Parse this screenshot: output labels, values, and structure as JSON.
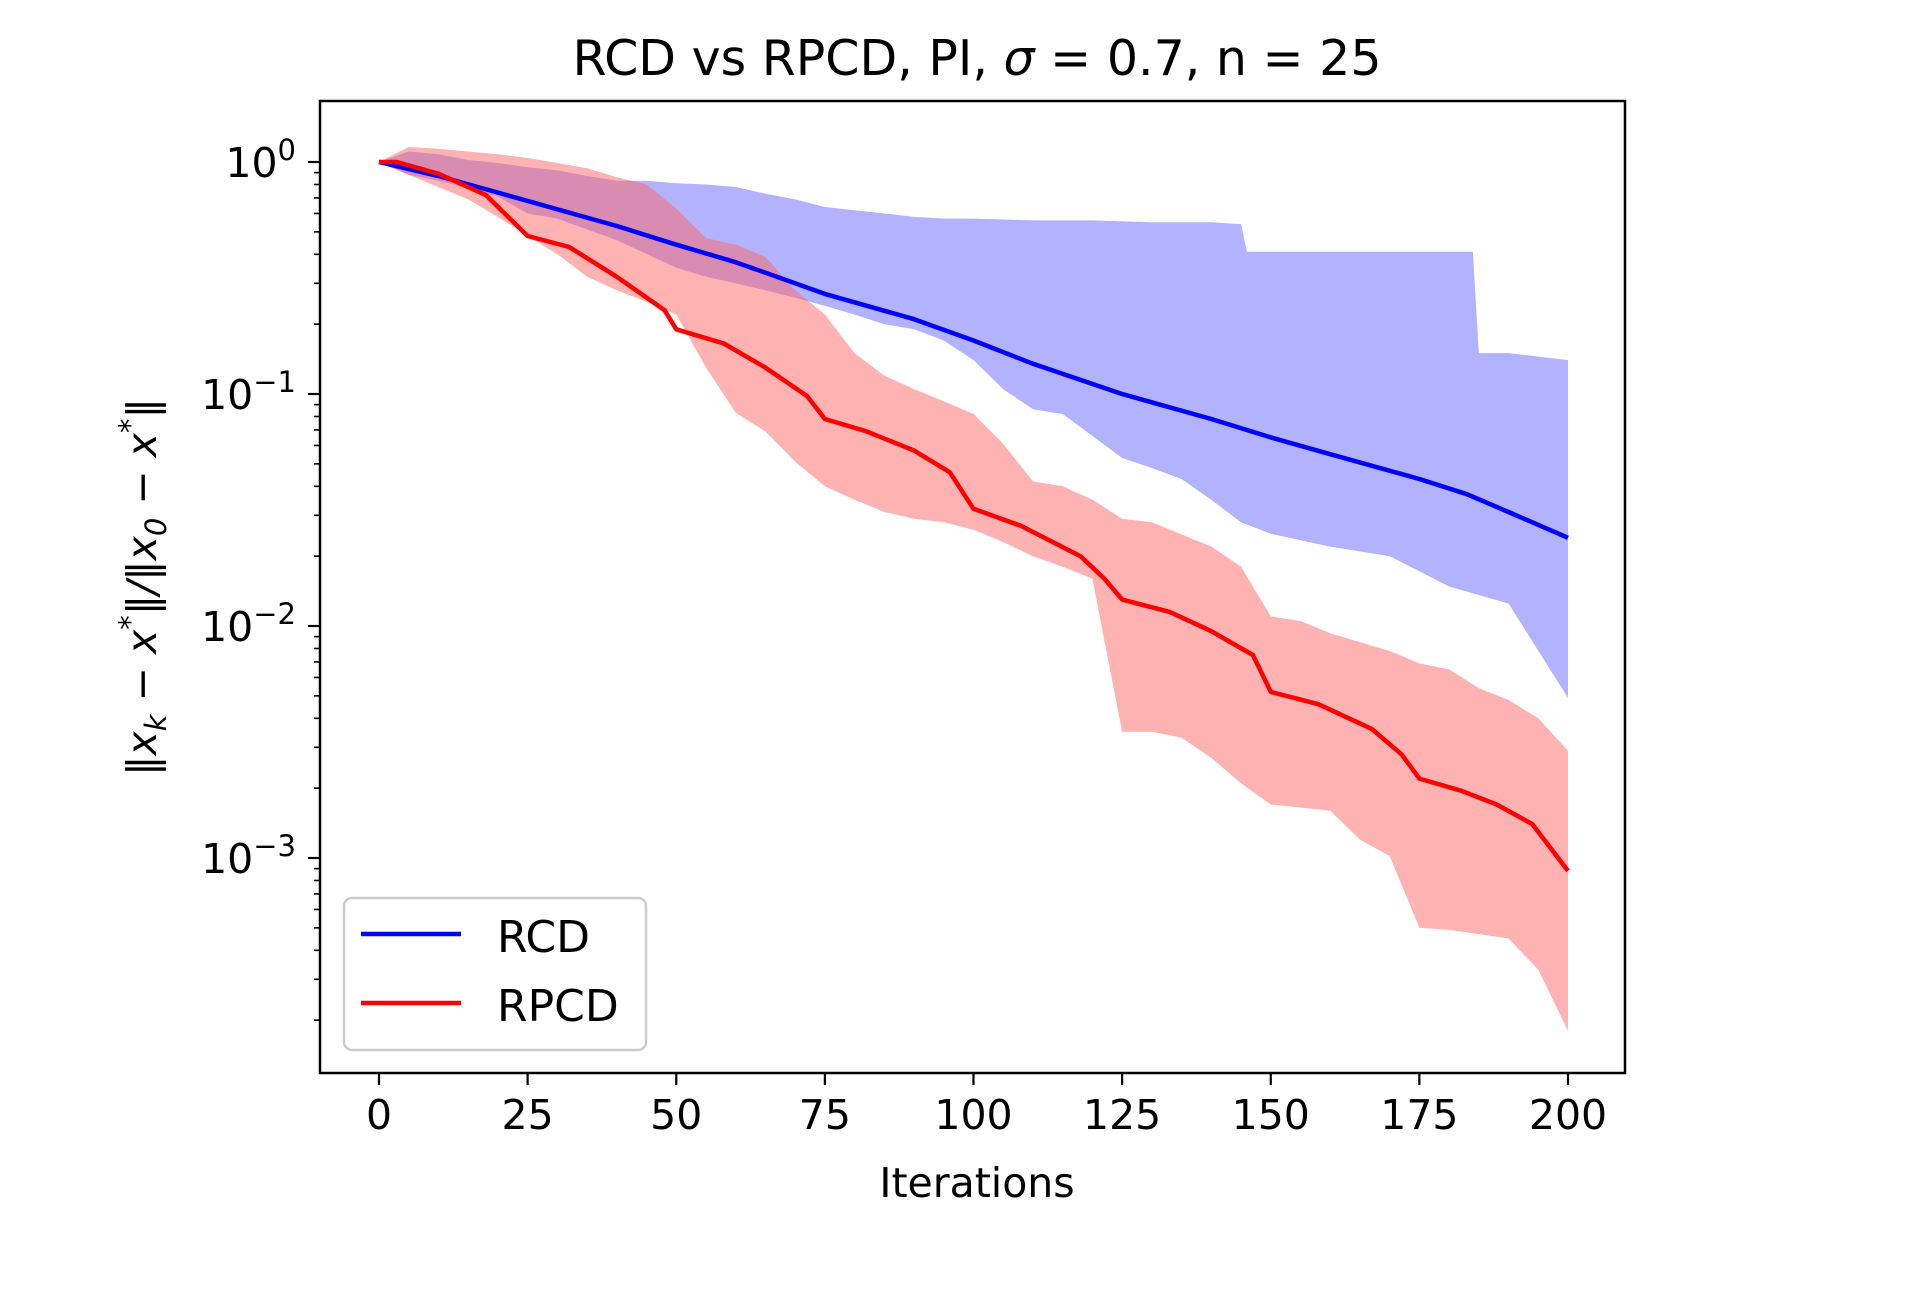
{
  "chart_data": {
    "type": "line",
    "title": "RCD vs RPCD, PI, σ = 0.7, n = 25",
    "title_parts": {
      "prefix": "RCD vs RPCD, PI, ",
      "sigma": "σ",
      "suffix": " = 0.7, n = 25"
    },
    "xlabel": "Iterations",
    "ylabel": "‖x_k − x*‖/‖x_0 − x*‖",
    "ylabel_parts": [
      "‖x",
      "k",
      " − x",
      "*",
      "‖/‖x",
      "0",
      " − x",
      "*",
      "‖"
    ],
    "xlim": [
      -10,
      210
    ],
    "ylim": [
      0.00012,
      1.86
    ],
    "yscale": "log",
    "grid": false,
    "legend_position": "lower-left",
    "xticks": [
      0,
      25,
      50,
      75,
      100,
      125,
      150,
      175,
      200
    ],
    "xtick_labels": [
      "0",
      "25",
      "50",
      "75",
      "100",
      "125",
      "150",
      "175",
      "200"
    ],
    "yticks": [
      1,
      0.1,
      0.01,
      0.001
    ],
    "ytick_labels": [
      {
        "base": "10",
        "exp": "0"
      },
      {
        "base": "10",
        "exp": "−1"
      },
      {
        "base": "10",
        "exp": "−2"
      },
      {
        "base": "10",
        "exp": "−3"
      }
    ],
    "series": [
      {
        "name": "RCD",
        "color": "#0000ff",
        "band_color": "#b0b0fc",
        "mean": {
          "x": [
            0,
            10,
            25,
            40,
            50,
            60,
            75,
            90,
            100,
            110,
            125,
            140,
            150,
            160,
            175,
            183,
            190,
            200
          ],
          "y": [
            1.0,
            0.87,
            0.68,
            0.53,
            0.44,
            0.37,
            0.27,
            0.21,
            0.17,
            0.135,
            0.1,
            0.078,
            0.065,
            0.055,
            0.043,
            0.037,
            0.031,
            0.024
          ]
        },
        "upper": {
          "x": [
            0,
            5,
            10,
            15,
            20,
            25,
            30,
            35,
            40,
            45,
            50,
            55,
            60,
            65,
            70,
            75,
            80,
            85,
            90,
            95,
            100,
            110,
            120,
            130,
            140,
            145,
            146,
            160,
            170,
            180,
            184,
            185,
            190,
            200
          ],
          "y": [
            1.0,
            1.11,
            1.08,
            1.02,
            0.99,
            0.95,
            0.92,
            0.87,
            0.83,
            0.83,
            0.81,
            0.8,
            0.78,
            0.73,
            0.69,
            0.64,
            0.62,
            0.6,
            0.58,
            0.57,
            0.57,
            0.56,
            0.56,
            0.55,
            0.55,
            0.54,
            0.41,
            0.41,
            0.41,
            0.41,
            0.41,
            0.15,
            0.15,
            0.14
          ]
        },
        "lower": {
          "x": [
            0,
            5,
            10,
            20,
            25,
            30,
            40,
            50,
            55,
            60,
            65,
            70,
            75,
            80,
            85,
            90,
            95,
            100,
            105,
            110,
            115,
            120,
            125,
            130,
            135,
            140,
            145,
            150,
            160,
            170,
            180,
            190,
            200
          ],
          "y": [
            1.0,
            0.88,
            0.83,
            0.71,
            0.6,
            0.57,
            0.46,
            0.35,
            0.32,
            0.3,
            0.28,
            0.26,
            0.24,
            0.22,
            0.2,
            0.19,
            0.17,
            0.14,
            0.105,
            0.086,
            0.082,
            0.066,
            0.053,
            0.048,
            0.043,
            0.035,
            0.028,
            0.025,
            0.022,
            0.02,
            0.0148,
            0.0125,
            0.0049
          ]
        }
      },
      {
        "name": "RPCD",
        "color": "#ff0000",
        "band_color": "#ffb0b0",
        "mean": {
          "x": [
            0,
            3,
            10,
            18,
            25,
            32,
            40,
            48,
            50,
            58,
            65,
            72,
            75,
            82,
            90,
            96,
            100,
            108,
            118,
            122,
            125,
            133,
            140,
            147,
            150,
            158,
            167,
            172,
            175,
            182,
            188,
            194,
            200
          ],
          "y": [
            1.0,
            1.0,
            0.89,
            0.72,
            0.48,
            0.43,
            0.32,
            0.23,
            0.19,
            0.165,
            0.13,
            0.098,
            0.078,
            0.069,
            0.057,
            0.046,
            0.032,
            0.027,
            0.02,
            0.016,
            0.013,
            0.0115,
            0.0095,
            0.0075,
            0.0052,
            0.0046,
            0.0036,
            0.0028,
            0.0022,
            0.00195,
            0.0017,
            0.0014,
            0.00088
          ]
        },
        "upper": {
          "x": [
            0,
            5,
            10,
            20,
            25,
            30,
            35,
            40,
            45,
            50,
            55,
            60,
            65,
            70,
            75,
            80,
            85,
            90,
            95,
            100,
            105,
            110,
            115,
            120,
            125,
            130,
            140,
            145,
            150,
            155,
            160,
            170,
            175,
            180,
            185,
            190,
            195,
            200
          ],
          "y": [
            1.0,
            1.16,
            1.14,
            1.08,
            1.04,
            0.99,
            0.94,
            0.86,
            0.8,
            0.63,
            0.47,
            0.44,
            0.39,
            0.28,
            0.22,
            0.15,
            0.12,
            0.105,
            0.093,
            0.082,
            0.061,
            0.042,
            0.04,
            0.035,
            0.029,
            0.028,
            0.022,
            0.018,
            0.011,
            0.0105,
            0.0093,
            0.0078,
            0.0069,
            0.0065,
            0.0054,
            0.0048,
            0.004,
            0.0029
          ]
        },
        "lower": {
          "x": [
            0,
            5,
            10,
            15,
            20,
            25,
            30,
            35,
            40,
            45,
            50,
            55,
            60,
            65,
            70,
            75,
            80,
            85,
            90,
            95,
            100,
            105,
            110,
            115,
            120,
            125,
            130,
            135,
            140,
            145,
            150,
            160,
            165,
            170,
            175,
            180,
            185,
            190,
            195,
            200
          ],
          "y": [
            1.0,
            0.88,
            0.78,
            0.69,
            0.58,
            0.48,
            0.4,
            0.32,
            0.28,
            0.25,
            0.22,
            0.13,
            0.083,
            0.069,
            0.051,
            0.04,
            0.035,
            0.031,
            0.029,
            0.028,
            0.026,
            0.023,
            0.02,
            0.018,
            0.016,
            0.0035,
            0.0035,
            0.0033,
            0.0027,
            0.0021,
            0.0017,
            0.0016,
            0.0012,
            0.00102,
            0.0005,
            0.00049,
            0.00047,
            0.00045,
            0.00033,
            0.00018
          ]
        }
      }
    ]
  }
}
